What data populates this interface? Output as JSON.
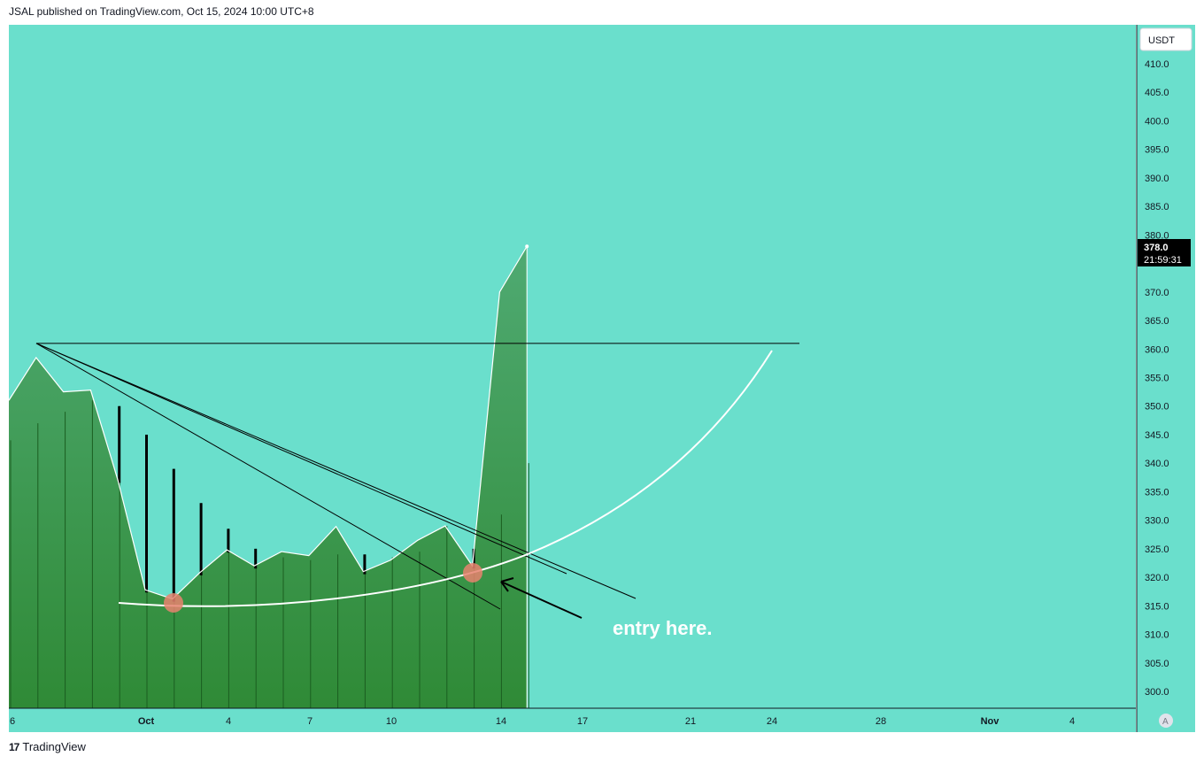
{
  "header": {
    "published_by": "JSAL published on TradingView.com, Oct 15, 2024 10:00 UTC+8"
  },
  "footer": {
    "logo_text": "TradingView",
    "logo_mark": "17"
  },
  "chart_data": {
    "type": "area",
    "currency_label": "USDT",
    "last_price_label": "378.0",
    "countdown_label": "21:59:31",
    "auto_scale_label": "A",
    "y_ticks": [
      "410.0",
      "405.0",
      "400.0",
      "395.0",
      "390.0",
      "385.0",
      "380.0",
      "370.0",
      "365.0",
      "360.0",
      "355.0",
      "350.0",
      "345.0",
      "340.0",
      "335.0",
      "330.0",
      "325.0",
      "320.0",
      "315.0",
      "310.0",
      "305.0",
      "300.0"
    ],
    "x_ticks": [
      "6",
      "Oct",
      "4",
      "7",
      "10",
      "14",
      "17",
      "21",
      "24",
      "28",
      "Nov",
      "4"
    ],
    "ylim": [
      297,
      412
    ],
    "series": [
      {
        "values": [
          {
            "day": "Sep 26",
            "close": 351.0
          },
          {
            "day": "Sep 27",
            "close": 358.5
          },
          {
            "day": "Sep 28",
            "close": 352.5
          },
          {
            "day": "Sep 29",
            "close": 352.8
          },
          {
            "day": "Sep 30",
            "close": 337.0
          },
          {
            "day": "Oct 1",
            "close": 317.8
          },
          {
            "day": "Oct 2",
            "close": 316.2
          },
          {
            "day": "Oct 3",
            "close": 320.8
          },
          {
            "day": "Oct 4",
            "close": 324.8
          },
          {
            "day": "Oct 5",
            "close": 322.0
          },
          {
            "day": "Oct 6",
            "close": 324.5
          },
          {
            "day": "Oct 7",
            "close": 323.8
          },
          {
            "day": "Oct 8",
            "close": 328.9
          },
          {
            "day": "Oct 9",
            "close": 321.0
          },
          {
            "day": "Oct 10",
            "close": 323.0
          },
          {
            "day": "Oct 11",
            "close": 326.5
          },
          {
            "day": "Oct 12",
            "close": 329.0
          },
          {
            "day": "Oct 13",
            "close": 322.0
          },
          {
            "day": "Oct 14",
            "close": 370.0
          },
          {
            "day": "Oct 15",
            "close": 378.0
          }
        ]
      }
    ],
    "volume_wicks": [
      {
        "day": "Sep 26",
        "high": 344
      },
      {
        "day": "Sep 27",
        "high": 347
      },
      {
        "day": "Sep 28",
        "high": 349
      },
      {
        "day": "Sep 29",
        "high": 351
      },
      {
        "day": "Sep 30",
        "high": 350
      },
      {
        "day": "Oct 1",
        "high": 345
      },
      {
        "day": "Oct 2",
        "high": 339
      },
      {
        "day": "Oct 3",
        "high": 333
      },
      {
        "day": "Oct 4",
        "high": 328.5
      },
      {
        "day": "Oct 5",
        "high": 325
      },
      {
        "day": "Oct 6",
        "high": 323.5
      },
      {
        "day": "Oct 7",
        "high": 323
      },
      {
        "day": "Oct 8",
        "high": 324
      },
      {
        "day": "Oct 9",
        "high": 324
      },
      {
        "day": "Oct 10",
        "high": 323.5
      },
      {
        "day": "Oct 11",
        "high": 324.5
      },
      {
        "day": "Oct 12",
        "high": 329
      },
      {
        "day": "Oct 13",
        "high": 325
      },
      {
        "day": "Oct 14",
        "high": 331
      },
      {
        "day": "Oct 15",
        "high": 340
      }
    ],
    "annotations": {
      "entry_text": "entry here.",
      "horizontal_level": 361.0
    },
    "colors": {
      "background": "#6ADFCC",
      "area_top": "#4FAA72",
      "area_bottom": "#2F8A36",
      "line": "#ffffff",
      "marker": "#E8826F",
      "price_label_bg": "#000000"
    }
  }
}
